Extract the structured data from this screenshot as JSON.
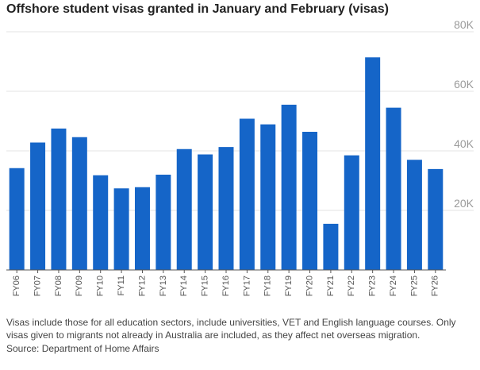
{
  "title": "Offshore student visas granted in January and February (visas)",
  "footnote": "Visas include those for all education sectors, include universities, VET and English language courses. Only visas given to migrants not already in Australia are included, as they affect net overseas migration.",
  "source": "Source: Department of Home Affairs",
  "colors": {
    "bar": "#1565c8",
    "grid": "#e3e3e3",
    "axis": "#555555"
  },
  "chart_data": {
    "type": "bar",
    "title": "Offshore student visas granted in January and February (visas)",
    "xlabel": "",
    "ylabel": "",
    "categories": [
      "FY06",
      "FY07",
      "FY08",
      "FY09",
      "FY10",
      "FY11",
      "FY12",
      "FY13",
      "FY14",
      "FY15",
      "FY16",
      "FY17",
      "FY18",
      "FY19",
      "FY20",
      "FY21",
      "FY22",
      "FY23",
      "FY24",
      "FY25",
      "FY26"
    ],
    "values": [
      34200,
      42800,
      47500,
      44600,
      31800,
      27400,
      27800,
      32000,
      40600,
      38800,
      41300,
      50800,
      48900,
      55500,
      46400,
      15500,
      38500,
      71400,
      54500,
      37000,
      33900
    ],
    "ylim": [
      0,
      80000
    ],
    "yticks": [
      20000,
      40000,
      60000,
      80000
    ],
    "ytick_labels": [
      "20K",
      "40K",
      "60K",
      "80K"
    ],
    "y_axis_side": "right",
    "grid": true,
    "legend": "none"
  }
}
